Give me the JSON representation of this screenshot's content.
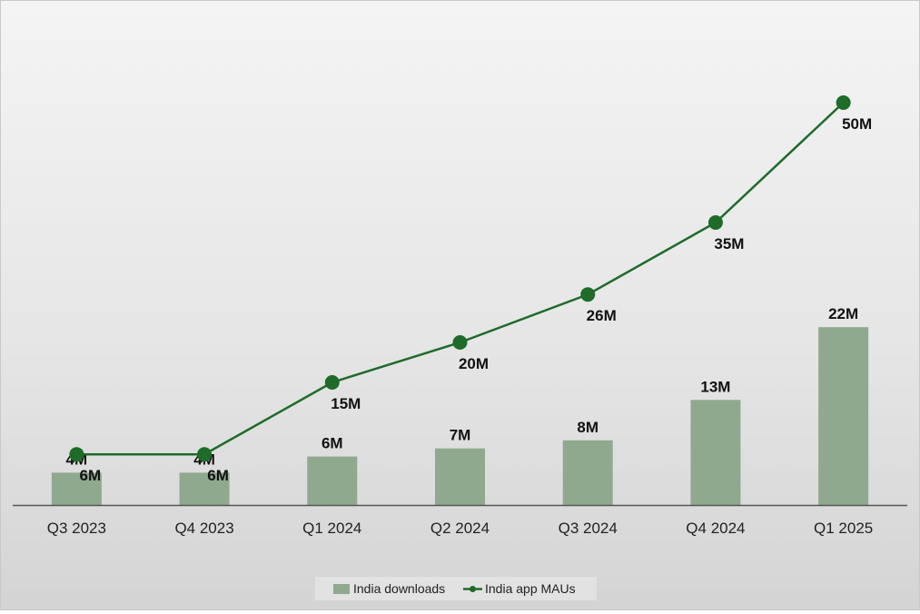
{
  "colors": {
    "bar": "#8fa98e",
    "line": "#1e6b2a",
    "axis": "#555555",
    "legend_bg": "#e2e2e2"
  },
  "chart_data": {
    "type": "bar",
    "categories": [
      "Q3 2023",
      "Q4 2023",
      "Q1 2024",
      "Q2 2024",
      "Q3 2024",
      "Q4 2024",
      "Q1 2025"
    ],
    "series": [
      {
        "name": "India downloads",
        "type": "bar",
        "values": [
          4,
          4,
          6,
          7,
          8,
          13,
          22
        ],
        "labels": [
          "4M",
          "4M",
          "6M",
          "7M",
          "8M",
          "13M",
          "22M"
        ]
      },
      {
        "name": "India app MAUs",
        "type": "line",
        "values": [
          6,
          6,
          15,
          20,
          26,
          35,
          50
        ],
        "labels": [
          "6M",
          "6M",
          "15M",
          "20M",
          "26M",
          "35M",
          "50M"
        ]
      }
    ],
    "title": "",
    "xlabel": "",
    "ylabel": "",
    "grid": false,
    "legend_position": "bottom"
  }
}
